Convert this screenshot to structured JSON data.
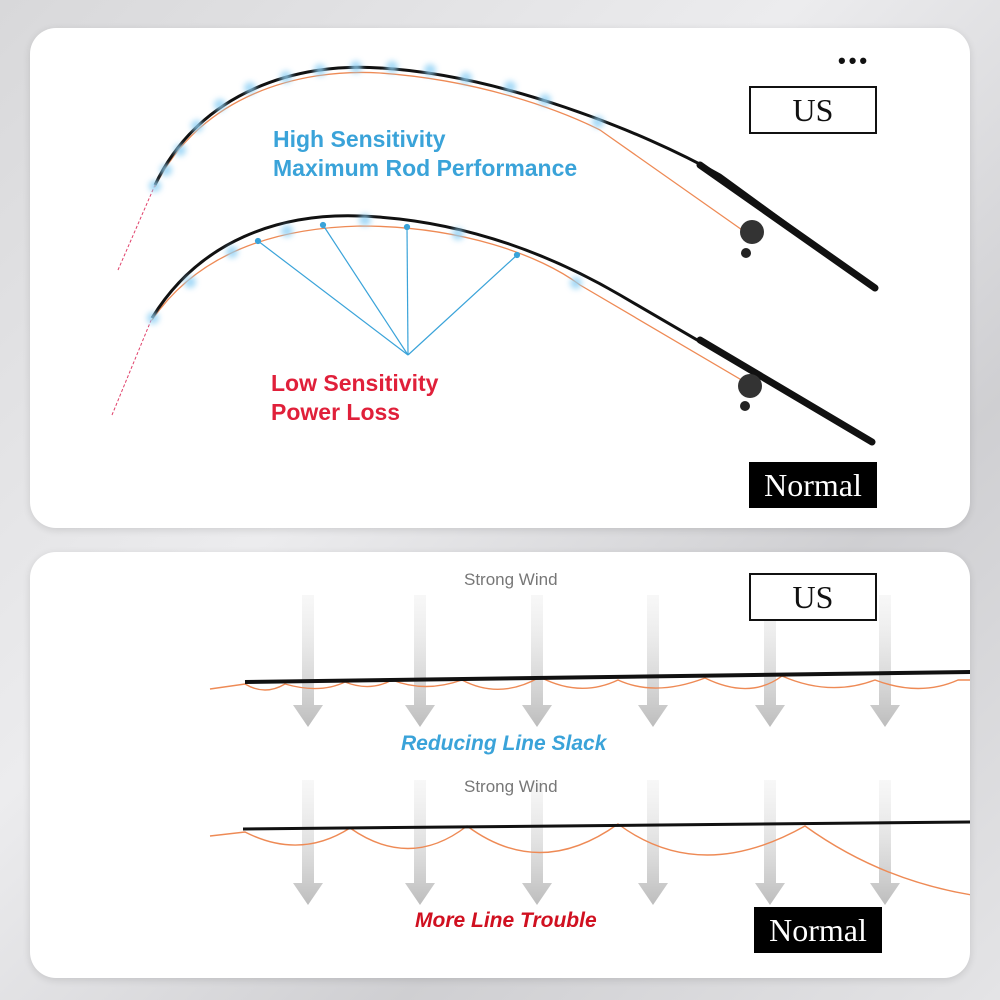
{
  "top_panel": {
    "menu_icon": "more-dots-icon",
    "us_label": "US",
    "normal_label": "Normal",
    "us_caption_line1": "High Sensitivity",
    "us_caption_line2": "Maximum Rod Performance",
    "normal_caption_line1": "Low Sensitivity",
    "normal_caption_line2": "Power Loss"
  },
  "bottom_panel": {
    "us_label": "US",
    "normal_label": "Normal",
    "wind_label_1": "Strong Wind",
    "wind_label_2": "Strong Wind",
    "us_caption": "Reducing Line Slack",
    "normal_caption": "More Line Trouble"
  },
  "colors": {
    "blue": "#3aa3d9",
    "red": "#e0203a",
    "line": "#ee8a55"
  }
}
